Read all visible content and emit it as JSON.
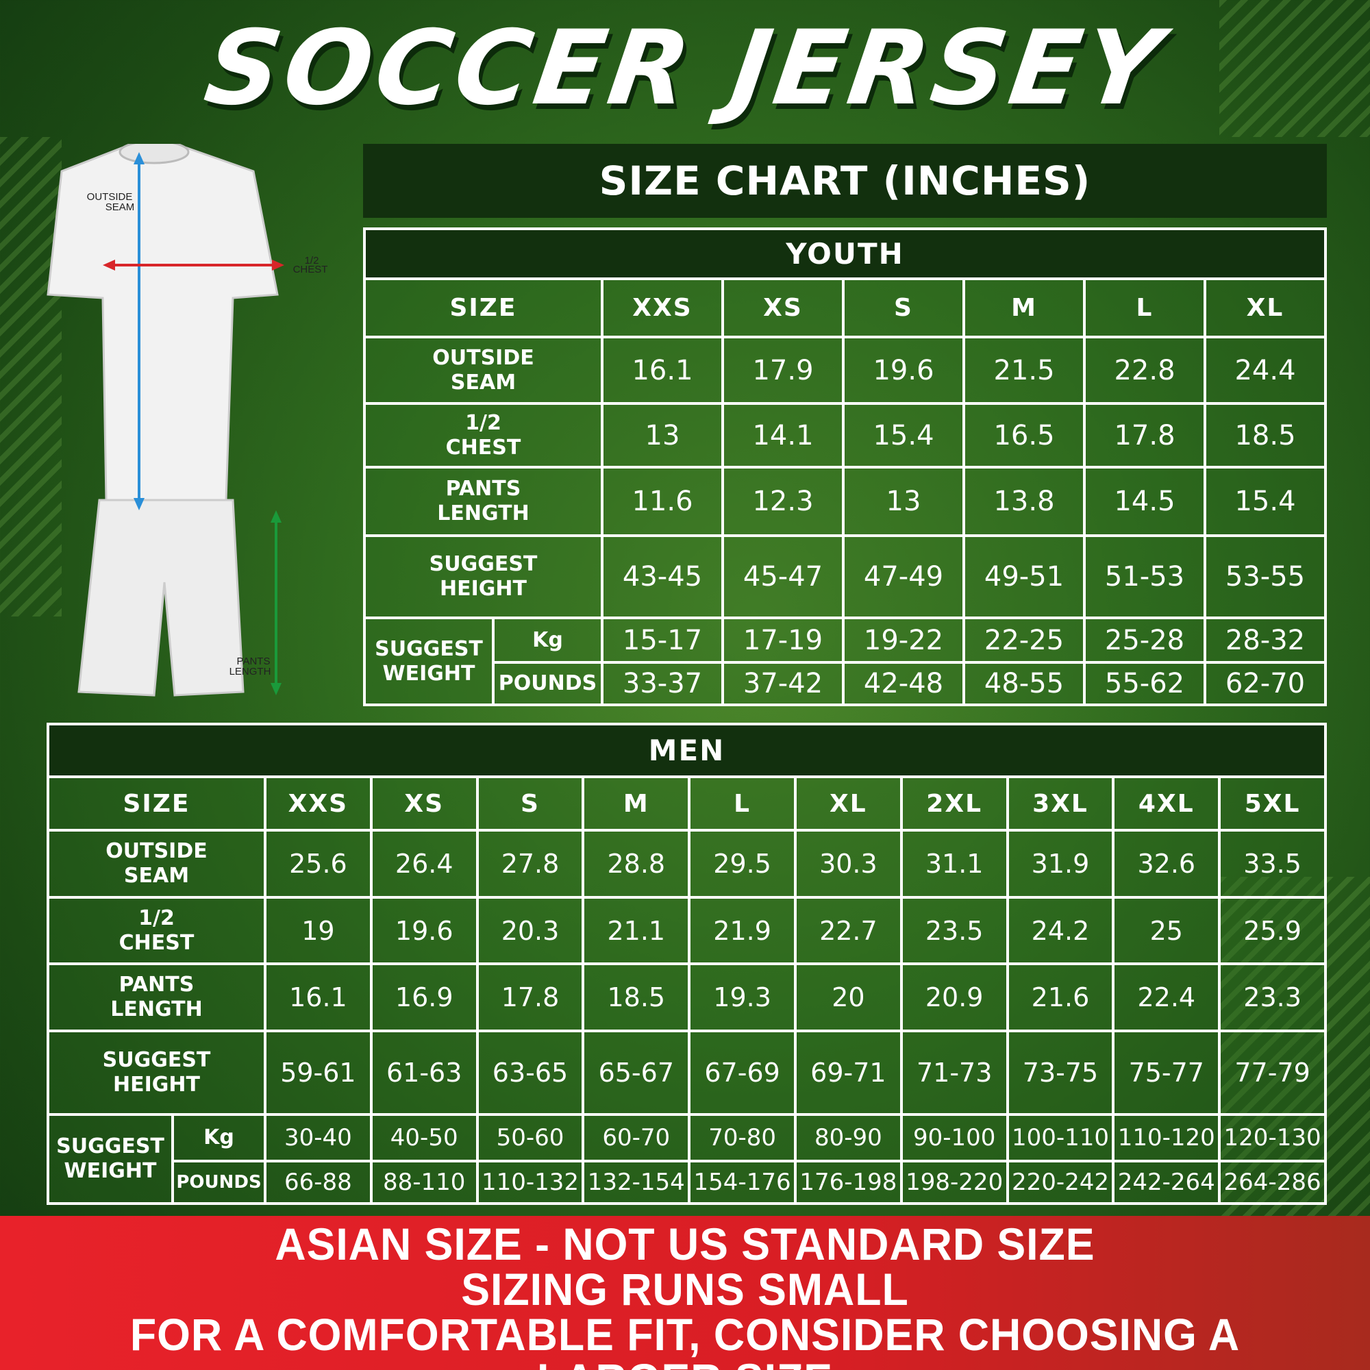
{
  "title": "SOCCER JERSEY",
  "chart_header": "SIZE CHART (INCHES)",
  "figure": {
    "labels": {
      "outside_seam": [
        "OUTSIDE",
        "SEAM"
      ],
      "chest": [
        "1/2",
        "CHEST"
      ],
      "pants": [
        "PANTS",
        "LENGTH"
      ]
    }
  },
  "colors": {
    "background": "#2f6a1e",
    "header": "#12300e",
    "banner": "#e8222a",
    "seam_arrow": "#2a8fd8",
    "chest_arrow": "#d8262a",
    "pants_arrow": "#1a9a3a"
  },
  "youth": {
    "title": "YOUTH",
    "size_label": "SIZE",
    "sizes": [
      "XXS",
      "XS",
      "S",
      "M",
      "L",
      "XL"
    ],
    "rows": [
      {
        "label1": "OUTSIDE",
        "label2": "SEAM",
        "values": [
          "16.1",
          "17.9",
          "19.6",
          "21.5",
          "22.8",
          "24.4"
        ]
      },
      {
        "label1": "1/2",
        "label2": "CHEST",
        "values": [
          "13",
          "14.1",
          "15.4",
          "16.5",
          "17.8",
          "18.5"
        ]
      },
      {
        "label1": "PANTS",
        "label2": "LENGTH",
        "values": [
          "11.6",
          "12.3",
          "13",
          "13.8",
          "14.5",
          "15.4"
        ]
      },
      {
        "label1": "SUGGEST",
        "label2": "HEIGHT",
        "values": [
          "43-45",
          "45-47",
          "47-49",
          "49-51",
          "51-53",
          "53-55"
        ]
      }
    ],
    "weight": {
      "label1": "SUGGEST",
      "label2": "WEIGHT",
      "kg_label": "Kg",
      "lb_label": "POUNDS",
      "kg": [
        "15-17",
        "17-19",
        "19-22",
        "22-25",
        "25-28",
        "28-32"
      ],
      "lb": [
        "33-37",
        "37-42",
        "42-48",
        "48-55",
        "55-62",
        "62-70"
      ]
    }
  },
  "men": {
    "title": "MEN",
    "size_label": "SIZE",
    "sizes": [
      "XXS",
      "XS",
      "S",
      "M",
      "L",
      "XL",
      "2XL",
      "3XL",
      "4XL",
      "5XL"
    ],
    "rows": [
      {
        "label1": "OUTSIDE",
        "label2": "SEAM",
        "values": [
          "25.6",
          "26.4",
          "27.8",
          "28.8",
          "29.5",
          "30.3",
          "31.1",
          "31.9",
          "32.6",
          "33.5"
        ]
      },
      {
        "label1": "1/2",
        "label2": "CHEST",
        "values": [
          "19",
          "19.6",
          "20.3",
          "21.1",
          "21.9",
          "22.7",
          "23.5",
          "24.2",
          "25",
          "25.9"
        ]
      },
      {
        "label1": "PANTS",
        "label2": "LENGTH",
        "values": [
          "16.1",
          "16.9",
          "17.8",
          "18.5",
          "19.3",
          "20",
          "20.9",
          "21.6",
          "22.4",
          "23.3"
        ]
      },
      {
        "label1": "SUGGEST",
        "label2": "HEIGHT",
        "values": [
          "59-61",
          "61-63",
          "63-65",
          "65-67",
          "67-69",
          "69-71",
          "71-73",
          "73-75",
          "75-77",
          "77-79"
        ]
      }
    ],
    "weight": {
      "label1": "SUGGEST",
      "label2": "WEIGHT",
      "kg_label": "Kg",
      "lb_label": "POUNDS",
      "kg": [
        "30-40",
        "40-50",
        "50-60",
        "60-70",
        "70-80",
        "80-90",
        "90-100",
        "100-110",
        "110-120",
        "120-130"
      ],
      "lb": [
        "66-88",
        "88-110",
        "110-132",
        "132-154",
        "154-176",
        "176-198",
        "198-220",
        "220-242",
        "242-264",
        "264-286"
      ]
    }
  },
  "banner": [
    "ASIAN SIZE - NOT US STANDARD SIZE",
    "SIZING RUNS SMALL",
    "FOR A COMFORTABLE FIT, CONSIDER CHOOSING A LARGER SIZE"
  ]
}
